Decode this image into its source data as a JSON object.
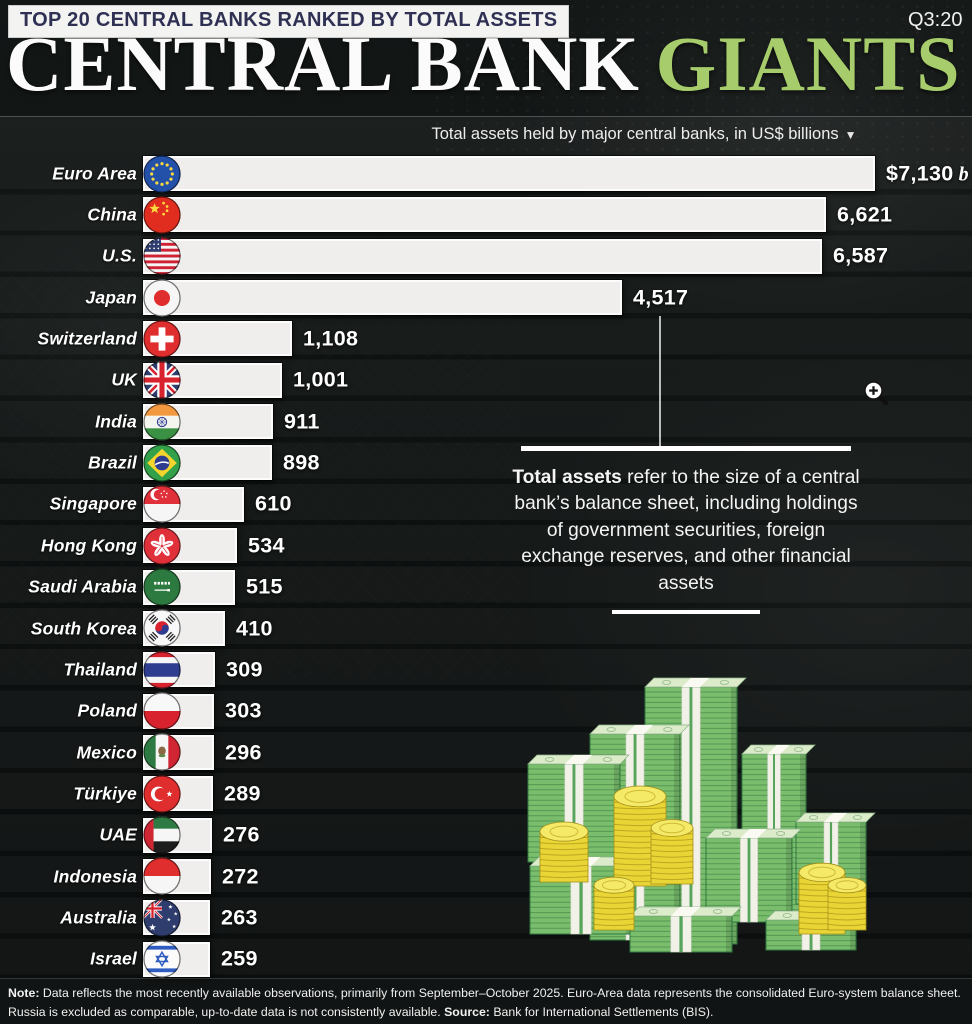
{
  "header": {
    "kicker": "TOP 20 CENTRAL BANKS RANKED BY TOTAL ASSETS",
    "period": "Q3:20",
    "title_white": "CENTRAL BANK",
    "title_green": "GIANTS",
    "subtitle": "Total assets held by major central banks, in US$ billions",
    "dropdown_arrow": "▼"
  },
  "chart_data": {
    "type": "bar",
    "orientation": "horizontal",
    "title": "Total assets held by major central banks, in US$ billions",
    "unit": "US$ billions",
    "xlim": [
      0,
      7130
    ],
    "categories": [
      "Euro Area",
      "China",
      "U.S.",
      "Japan",
      "Switzerland",
      "UK",
      "India",
      "Brazil",
      "Singapore",
      "Hong Kong",
      "Saudi Arabia",
      "South Korea",
      "Thailand",
      "Poland",
      "Mexico",
      "Türkiye",
      "UAE",
      "Indonesia",
      "Australia",
      "Israel"
    ],
    "values": [
      7130,
      6621,
      6587,
      4517,
      1108,
      1001,
      911,
      898,
      610,
      534,
      515,
      410,
      309,
      303,
      296,
      289,
      276,
      272,
      263,
      259
    ],
    "value_labels": [
      "$7,130",
      "6,621",
      "6,587",
      "4,517",
      "1,108",
      "1,001",
      "911",
      "898",
      "610",
      "534",
      "515",
      "410",
      "309",
      "303",
      "296",
      "289",
      "276",
      "272",
      "263",
      "259"
    ],
    "first_value_suffix": "b",
    "flags": [
      "eu",
      "cn",
      "us",
      "jp",
      "ch",
      "uk",
      "in",
      "br",
      "sg",
      "hk",
      "sa",
      "kr",
      "th",
      "pl",
      "mx",
      "tr",
      "ae",
      "id",
      "au",
      "il"
    ]
  },
  "annotation": {
    "bold": "Total assets",
    "text": " refer to the size of a central bank’s balance sheet, including holdings of government securities, foreign exchange reserves, and other financial assets"
  },
  "footer": {
    "note_label": "Note:",
    "note_text": " Data reflects the most recently available observations, primarily from September–October 2025. Euro-Area data represents the consolidated Euro-system balance sheet. Russia is excluded as comparable, up-to-date data is not consistently available. ",
    "source_label": "Source:",
    "source_text": " Bank for International Settlements (BIS)."
  },
  "colors": {
    "accent_green": "#a6cc6b",
    "bar_fill": "#efeeec",
    "background": "#0b0f0e",
    "kicker_bg": "#f3f3f1",
    "kicker_text": "#2f3154",
    "bill_green": "#79bd6d",
    "coin_yellow": "#e9d636"
  }
}
